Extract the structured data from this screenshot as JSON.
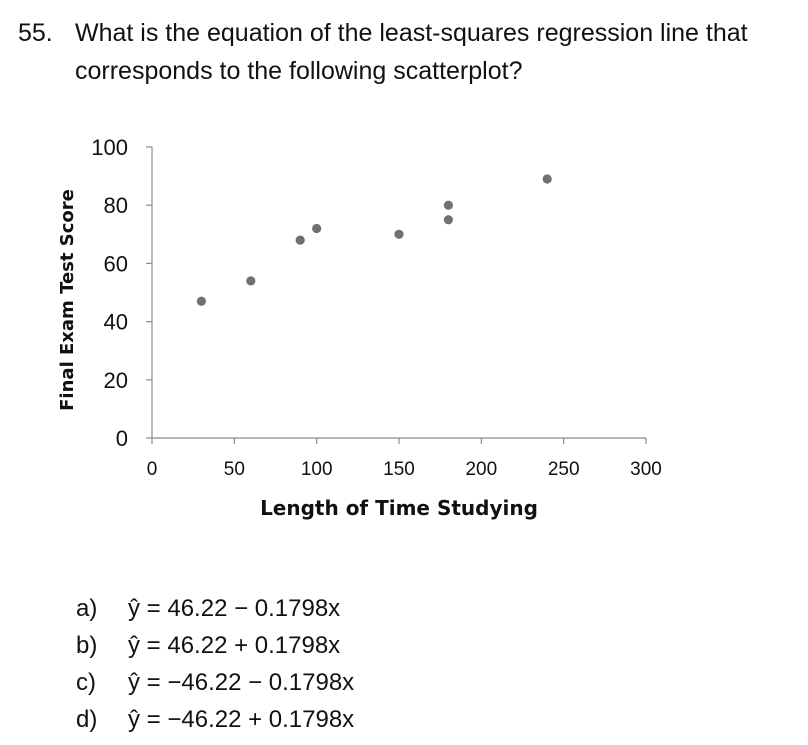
{
  "question": {
    "number": "55.",
    "text": "What is the equation of the least-squares regression line that corresponds to the following scatterplot?"
  },
  "chart_data": {
    "type": "scatter",
    "title": "",
    "xlabel": "Length of Time Studying",
    "ylabel": "Final Exam Test Score",
    "xlim": [
      0,
      300
    ],
    "ylim": [
      0,
      100
    ],
    "xticks": [
      0,
      50,
      100,
      150,
      200,
      250,
      300
    ],
    "yticks": [
      0,
      20,
      40,
      60,
      80,
      100
    ],
    "grid": false,
    "legend": "none",
    "marker_color": "#707070",
    "points": [
      {
        "x": 30,
        "y": 47
      },
      {
        "x": 60,
        "y": 54
      },
      {
        "x": 90,
        "y": 68
      },
      {
        "x": 100,
        "y": 72
      },
      {
        "x": 150,
        "y": 70
      },
      {
        "x": 180,
        "y": 75
      },
      {
        "x": 180,
        "y": 80
      },
      {
        "x": 240,
        "y": 89
      }
    ]
  },
  "answers": [
    {
      "letter": "a)",
      "text": "ŷ = 46.22 − 0.1798x"
    },
    {
      "letter": "b)",
      "text": "ŷ = 46.22 + 0.1798x"
    },
    {
      "letter": "c)",
      "text": "ŷ = −46.22 − 0.1798x"
    },
    {
      "letter": "d)",
      "text": "ŷ = −46.22 + 0.1798x"
    }
  ]
}
